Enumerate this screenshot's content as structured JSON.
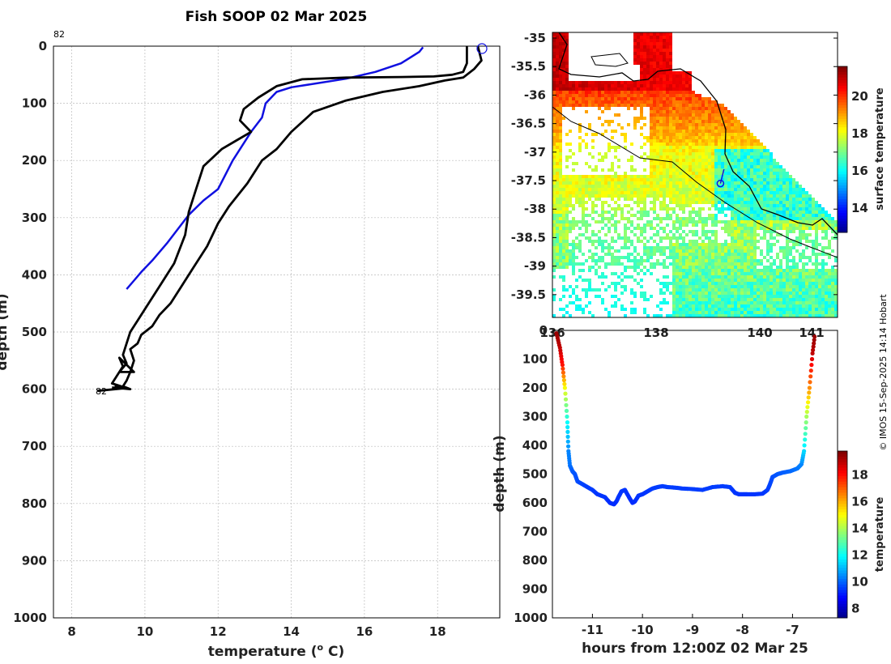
{
  "chart_data": [
    {
      "type": "line",
      "title": "Fish SOOP 02 Mar 2025",
      "xlabel": "temperature (",
      "xlabel_sup": "o",
      "xlabel_suffix": " C)",
      "ylabel": "depth (m)",
      "xlim": [
        7.5,
        19.7
      ],
      "ylim": [
        0,
        1000
      ],
      "x_ticks": [
        "8",
        "10",
        "12",
        "14",
        "16",
        "18"
      ],
      "y_ticks": [
        "0",
        "100",
        "200",
        "300",
        "400",
        "500",
        "600",
        "700",
        "800",
        "900",
        "1000"
      ],
      "profile_label": "82",
      "series": [
        {
          "name": "blue profile",
          "color": "#1010e0",
          "x": [
            17.6,
            17.5,
            17.0,
            16.3,
            15.5,
            14.7,
            14.0,
            13.6,
            13.3,
            13.2,
            12.9,
            12.4,
            12.0,
            11.6,
            11.2,
            10.9,
            10.6,
            10.2,
            9.9,
            9.7,
            9.5
          ],
          "y": [
            2,
            10,
            30,
            45,
            57,
            65,
            72,
            80,
            100,
            125,
            150,
            200,
            250,
            270,
            295,
            320,
            345,
            375,
            395,
            410,
            425
          ]
        },
        {
          "name": "black profile 1",
          "color": "#000000",
          "x": [
            18.8,
            18.8,
            18.7,
            18.4,
            17.9,
            17.0,
            15.5,
            14.3,
            13.6,
            13.1,
            12.7,
            12.6,
            12.9,
            12.5,
            12.1,
            11.6,
            11.4,
            11.2,
            11.1,
            10.8,
            10.4,
            10.1,
            9.8,
            9.6,
            9.5,
            9.4,
            9.5,
            9.3,
            9.7,
            9.3,
            9.4,
            9.2,
            9.1,
            9.5,
            8.7
          ],
          "y": [
            0,
            30,
            45,
            50,
            53,
            54,
            55,
            58,
            70,
            90,
            110,
            130,
            150,
            165,
            180,
            210,
            250,
            290,
            330,
            380,
            420,
            450,
            480,
            500,
            520,
            540,
            555,
            570,
            570,
            545,
            560,
            580,
            590,
            598,
            603
          ]
        },
        {
          "name": "black profile 2",
          "color": "#000000",
          "x": [
            19.1,
            19.2,
            19.0,
            18.7,
            18.2,
            17.5,
            16.5,
            15.5,
            14.6,
            14.0,
            13.6,
            13.2,
            12.8,
            12.3,
            12.0,
            11.7,
            11.3,
            11.0,
            10.7,
            10.4,
            10.2,
            9.9,
            9.8,
            9.6,
            9.7,
            9.6,
            9.5,
            9.4,
            9.6,
            9.2,
            9.6,
            9.1
          ],
          "y": [
            0,
            25,
            40,
            55,
            60,
            70,
            80,
            95,
            115,
            150,
            180,
            200,
            240,
            280,
            310,
            350,
            390,
            420,
            450,
            470,
            490,
            505,
            520,
            530,
            550,
            570,
            585,
            595,
            600,
            595,
            600,
            597
          ]
        }
      ]
    },
    {
      "type": "heatmap",
      "xlim": [
        136,
        141.5
      ],
      "ylim": [
        -39.9,
        -34.9
      ],
      "x_ticks": [
        "136",
        "138",
        "140",
        "141"
      ],
      "y_ticks": [
        "-35",
        "-35.5",
        "-36",
        "-36.5",
        "-37",
        "-37.5",
        "-38",
        "-38.5",
        "-39",
        "-39.5"
      ],
      "colorbar_label": "surface temperature",
      "colorbar_ticks": [
        "14",
        "16",
        "18",
        "20"
      ],
      "colorbar_range": [
        12.7,
        21.6
      ],
      "track": {
        "lon": [
          139.31,
          139.24
        ],
        "lat": [
          -37.3,
          -37.55
        ]
      }
    },
    {
      "type": "scatter",
      "xlabel": "hours from 12:00Z 02 Mar 25",
      "ylabel": "depth (m)",
      "xlim": [
        -11.8,
        -6.1
      ],
      "ylim": [
        0,
        1000
      ],
      "x_ticks": [
        "-11",
        "-10",
        "-9",
        "-8",
        "-7"
      ],
      "y_ticks": [
        "0",
        "100",
        "200",
        "300",
        "400",
        "500",
        "600",
        "700",
        "800",
        "900",
        "1000"
      ],
      "colorbar_label": "temperature",
      "colorbar_ticks": [
        "8",
        "10",
        "12",
        "14",
        "16",
        "18"
      ],
      "colorbar_range": [
        7.3,
        19.8
      ],
      "track": {
        "t": [
          -11.72,
          -11.65,
          -11.6,
          -11.55,
          -11.5,
          -11.48,
          -11.45,
          -11.4,
          -11.35,
          -11.3,
          -11.2,
          -11.1,
          -11.0,
          -10.9,
          -10.75,
          -10.65,
          -10.57,
          -10.52,
          -10.48,
          -10.42,
          -10.35,
          -10.27,
          -10.2,
          -10.15,
          -10.08,
          -10.0,
          -9.9,
          -9.8,
          -9.7,
          -9.6,
          -9.5,
          -9.35,
          -9.2,
          -9.0,
          -8.8,
          -8.6,
          -8.4,
          -8.25,
          -8.15,
          -8.07,
          -7.98,
          -7.9,
          -7.75,
          -7.6,
          -7.5,
          -7.45,
          -7.4,
          -7.3,
          -7.2,
          -7.05,
          -6.9,
          -6.82,
          -6.77,
          -6.72,
          -6.66,
          -6.6,
          -6.55
        ],
        "depth": [
          10,
          60,
          120,
          200,
          320,
          420,
          470,
          490,
          500,
          525,
          535,
          545,
          555,
          570,
          580,
          600,
          605,
          595,
          580,
          560,
          555,
          580,
          600,
          595,
          575,
          570,
          560,
          550,
          545,
          542,
          545,
          547,
          550,
          552,
          555,
          545,
          542,
          545,
          565,
          570,
          570,
          570,
          570,
          568,
          555,
          535,
          510,
          500,
          495,
          490,
          480,
          465,
          420,
          300,
          200,
          80,
          10
        ],
        "temp": [
          19.5,
          19.0,
          18.0,
          15.0,
          12.0,
          10.5,
          10.3,
          10.0,
          9.9,
          9.8,
          9.7,
          9.6,
          9.6,
          9.5,
          9.5,
          9.4,
          9.4,
          9.4,
          9.5,
          9.5,
          9.5,
          9.4,
          9.4,
          9.4,
          9.5,
          9.5,
          9.5,
          9.6,
          9.6,
          9.6,
          9.6,
          9.6,
          9.6,
          9.6,
          9.6,
          9.6,
          9.6,
          9.6,
          9.5,
          9.5,
          9.5,
          9.5,
          9.5,
          9.5,
          9.6,
          9.7,
          9.8,
          9.9,
          10.0,
          10.1,
          10.3,
          10.5,
          11.5,
          14.0,
          16.5,
          19.0,
          19.6
        ]
      }
    }
  ],
  "credit": "© IMOS 15-Sep-2025 14:14 Hobart"
}
